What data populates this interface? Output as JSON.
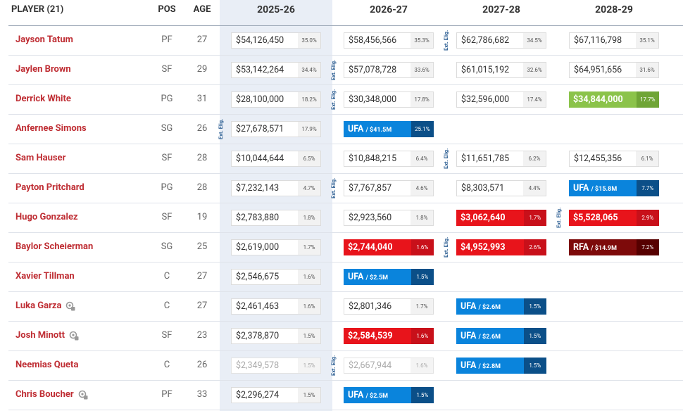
{
  "header": {
    "player": "PLAYER (21)",
    "pos": "POS",
    "age": "AGE",
    "seasons": [
      "2025-26",
      "2026-27",
      "2027-28",
      "2028-29"
    ]
  },
  "rows": [
    {
      "name": "Jayson Tatum",
      "pos": "PF",
      "age": "27",
      "cells": [
        {
          "amount": "$54,126,450",
          "pct": "35.0%"
        },
        {
          "amount": "$58,456,566",
          "pct": "35.3%"
        },
        {
          "amount": "$62,786,682",
          "pct": "34.5%",
          "note": "Ext. Elig."
        },
        {
          "amount": "$67,116,798",
          "pct": "35.1%"
        }
      ]
    },
    {
      "name": "Jaylen Brown",
      "pos": "SF",
      "age": "29",
      "cells": [
        {
          "amount": "$53,142,264",
          "pct": "34.4%"
        },
        {
          "amount": "$57,078,728",
          "pct": "33.6%",
          "note": "Ext. Elig."
        },
        {
          "amount": "$61,015,192",
          "pct": "32.6%"
        },
        {
          "amount": "$64,951,656",
          "pct": "31.6%"
        }
      ]
    },
    {
      "name": "Derrick White",
      "pos": "PG",
      "age": "31",
      "cells": [
        {
          "amount": "$28,100,000",
          "pct": "18.2%"
        },
        {
          "amount": "$30,348,000",
          "pct": "17.8%",
          "note": "Ext. Elig."
        },
        {
          "amount": "$32,596,000",
          "pct": "17.4%"
        },
        {
          "amount": "$34,844,000",
          "pct": "17.7%",
          "style": "green"
        }
      ]
    },
    {
      "name": "Anfernee Simons",
      "pos": "SG",
      "age": "26",
      "cells": [
        {
          "amount": "$27,678,571",
          "pct": "17.9%",
          "note": "Ext. Elig."
        },
        {
          "tag": "UFA",
          "amount": "/ $41.5M",
          "pct": "25.1%",
          "style": "ufa"
        },
        null,
        null
      ]
    },
    {
      "name": "Sam Hauser",
      "pos": "SF",
      "age": "28",
      "cells": [
        {
          "amount": "$10,044,644",
          "pct": "6.5%"
        },
        {
          "amount": "$10,848,215",
          "pct": "6.4%"
        },
        {
          "amount": "$11,651,785",
          "pct": "6.2%",
          "note": "Ext. Elig."
        },
        {
          "amount": "$12,455,356",
          "pct": "6.1%"
        }
      ]
    },
    {
      "name": "Payton Pritchard",
      "pos": "PG",
      "age": "28",
      "cells": [
        {
          "amount": "$7,232,143",
          "pct": "4.7%"
        },
        {
          "amount": "$7,767,857",
          "pct": "4.6%",
          "note": "Ext. Elig."
        },
        {
          "amount": "$8,303,571",
          "pct": "4.4%"
        },
        {
          "tag": "UFA",
          "amount": "/ $15.8M",
          "pct": "7.7%",
          "style": "ufa"
        }
      ]
    },
    {
      "name": "Hugo Gonzalez",
      "pos": "SF",
      "age": "19",
      "cells": [
        {
          "amount": "$2,783,880",
          "pct": "1.8%"
        },
        {
          "amount": "$2,923,560",
          "pct": "1.8%"
        },
        {
          "amount": "$3,062,640",
          "pct": "1.7%",
          "style": "red"
        },
        {
          "amount": "$5,528,065",
          "pct": "2.9%",
          "style": "red",
          "note": "Ext. Elig."
        }
      ]
    },
    {
      "name": "Baylor Scheierman",
      "pos": "SG",
      "age": "25",
      "cells": [
        {
          "amount": "$2,619,000",
          "pct": "1.7%"
        },
        {
          "amount": "$2,744,040",
          "pct": "1.6%",
          "style": "red"
        },
        {
          "amount": "$4,952,993",
          "pct": "2.6%",
          "style": "red",
          "note": "Ext. Elig."
        },
        {
          "tag": "RFA",
          "amount": "/ $14.9M",
          "pct": "7.2%",
          "style": "rfa"
        }
      ]
    },
    {
      "name": "Xavier Tillman",
      "pos": "C",
      "age": "27",
      "cells": [
        {
          "amount": "$2,546,675",
          "pct": "1.6%"
        },
        {
          "tag": "UFA",
          "amount": "/ $2.5M",
          "pct": "1.5%",
          "style": "ufa"
        },
        null,
        null
      ]
    },
    {
      "name": "Luka Garza",
      "pos": "C",
      "age": "27",
      "icon": true,
      "cells": [
        {
          "amount": "$2,461,463",
          "pct": "1.6%"
        },
        {
          "amount": "$2,801,346",
          "pct": "1.7%"
        },
        {
          "tag": "UFA",
          "amount": "/ $2.6M",
          "pct": "1.5%",
          "style": "ufa"
        },
        null
      ]
    },
    {
      "name": "Josh Minott",
      "pos": "SF",
      "age": "23",
      "icon": true,
      "cells": [
        {
          "amount": "$2,378,870",
          "pct": "1.5%"
        },
        {
          "amount": "$2,584,539",
          "pct": "1.6%",
          "style": "red"
        },
        {
          "tag": "UFA",
          "amount": "/ $2.6M",
          "pct": "1.5%",
          "style": "ufa"
        },
        null
      ]
    },
    {
      "name": "Neemias Queta",
      "pos": "C",
      "age": "26",
      "cells": [
        {
          "amount": "$2,349,578",
          "pct": "1.5%",
          "style": "faded"
        },
        {
          "amount": "$2,667,944",
          "pct": "1.6%",
          "style": "faded",
          "note": "Ext. Elig."
        },
        {
          "tag": "UFA",
          "amount": "/ $2.8M",
          "pct": "1.5%",
          "style": "ufa"
        },
        null
      ]
    },
    {
      "name": "Chris Boucher",
      "pos": "PF",
      "age": "33",
      "icon": true,
      "cells": [
        {
          "amount": "$2,296,274",
          "pct": "1.5%"
        },
        {
          "tag": "UFA",
          "amount": "/ $2.5M",
          "pct": "1.5%",
          "style": "ufa"
        },
        null,
        null
      ]
    }
  ]
}
